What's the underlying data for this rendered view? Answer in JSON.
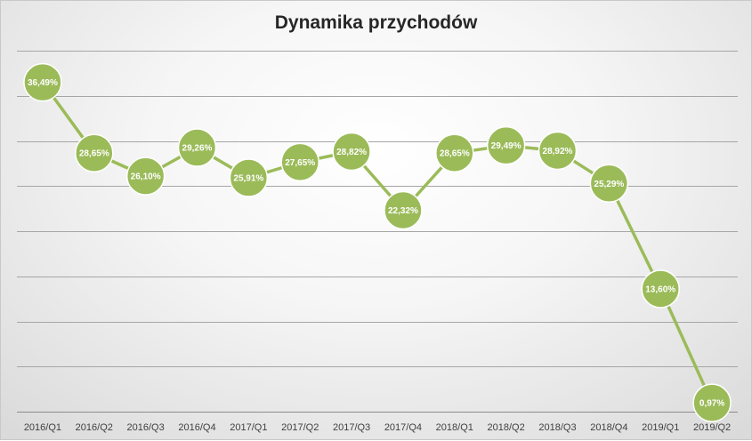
{
  "chart_data": {
    "type": "line",
    "title": "Dynamika przychodów",
    "xlabel": "",
    "ylabel": "",
    "categories": [
      "2016/Q1",
      "2016/Q2",
      "2016/Q3",
      "2016/Q4",
      "2017/Q1",
      "2017/Q2",
      "2017/Q3",
      "2017/Q4",
      "2018/Q1",
      "2018/Q2",
      "2018/Q3",
      "2018/Q4",
      "2019/Q1",
      "2019/Q2"
    ],
    "series": [
      {
        "values": [
          36.49,
          28.65,
          26.1,
          29.26,
          25.91,
          27.65,
          28.82,
          22.32,
          28.65,
          29.49,
          28.92,
          25.29,
          13.6,
          0.97
        ],
        "labels": [
          "36,49%",
          "28,65%",
          "26,10%",
          "29,26%",
          "25,91%",
          "27,65%",
          "28,82%",
          "22,32%",
          "28,65%",
          "29,49%",
          "28,92%",
          "25,29%",
          "13,60%",
          "0,97%"
        ]
      }
    ],
    "ylim": [
      0,
      40
    ],
    "y_gridline_step": 5,
    "y_axis_labels_visible": false,
    "grid": true,
    "legend": "none",
    "colors": {
      "series": "#9bbb59",
      "marker_border": "#ffffff",
      "gridline": "#a6a6a6"
    }
  }
}
